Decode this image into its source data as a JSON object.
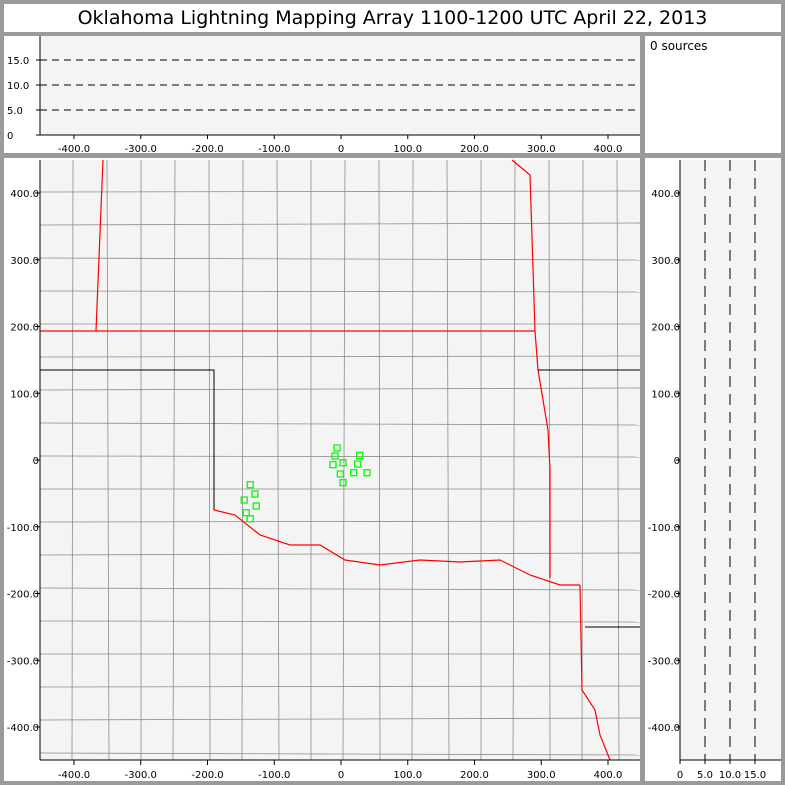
{
  "title": "Oklahoma Lightning Mapping Array   1100-1200 UTC  April 22, 2013",
  "source_count_label": "0 sources",
  "colors": {
    "frame": "#9a9a9a",
    "plot_bg": "#f4f4f4",
    "state_border": "#ff0000",
    "county_line": "#8c8c8c",
    "source_marker": "#00ff00"
  },
  "chart_data": [
    {
      "type": "scatter",
      "panel": "altitude-vs-east-west",
      "xlim": [
        -450,
        450
      ],
      "ylim": [
        0,
        20
      ],
      "x_ticks": [
        "-400.0",
        "-300.0",
        "-200.0",
        "-100.0",
        "0",
        "100.0",
        "200.0",
        "300.0",
        "400.0"
      ],
      "y_ticks": [
        "0",
        "5.0",
        "10.0",
        "15.0"
      ],
      "grid": "dashed at 5, 10, 15",
      "points": []
    },
    {
      "type": "scatter",
      "panel": "plan-view-map",
      "xlim": [
        -450,
        450
      ],
      "ylim": [
        -450,
        450
      ],
      "x_ticks": [
        "-400.0",
        "-300.0",
        "-200.0",
        "-100.0",
        "0",
        "100.0",
        "200.0",
        "300.0",
        "400.0"
      ],
      "y_ticks": [
        "-400.0",
        "-300.0",
        "-200.0",
        "-100.0",
        "0",
        "100.0",
        "200.0",
        "300.0",
        "400.0"
      ],
      "marker": "hollow-square",
      "points": [
        {
          "x": -6,
          "y": 18
        },
        {
          "x": -9,
          "y": 6
        },
        {
          "x": 28,
          "y": 7
        },
        {
          "x": -12,
          "y": -7
        },
        {
          "x": 3,
          "y": -4
        },
        {
          "x": 25,
          "y": -6
        },
        {
          "x": -1,
          "y": -21
        },
        {
          "x": 19,
          "y": -19
        },
        {
          "x": 39,
          "y": -19
        },
        {
          "x": 3,
          "y": -34
        },
        {
          "x": -136,
          "y": -37
        },
        {
          "x": -129,
          "y": -51
        },
        {
          "x": -145,
          "y": -60
        },
        {
          "x": -127,
          "y": -69
        },
        {
          "x": -142,
          "y": -79
        },
        {
          "x": -136,
          "y": -88
        }
      ]
    },
    {
      "type": "scatter",
      "panel": "north-south-vs-altitude",
      "xlim": [
        0,
        20
      ],
      "ylim": [
        -450,
        450
      ],
      "x_ticks": [
        "0",
        "5.0",
        "10.0",
        "15.0"
      ],
      "y_ticks": [
        "-400.0",
        "-300.0",
        "-200.0",
        "-100.0",
        "0",
        "100.0",
        "200.0",
        "300.0",
        "400.0"
      ],
      "grid": "dashed at 5, 10, 15",
      "points": []
    }
  ]
}
